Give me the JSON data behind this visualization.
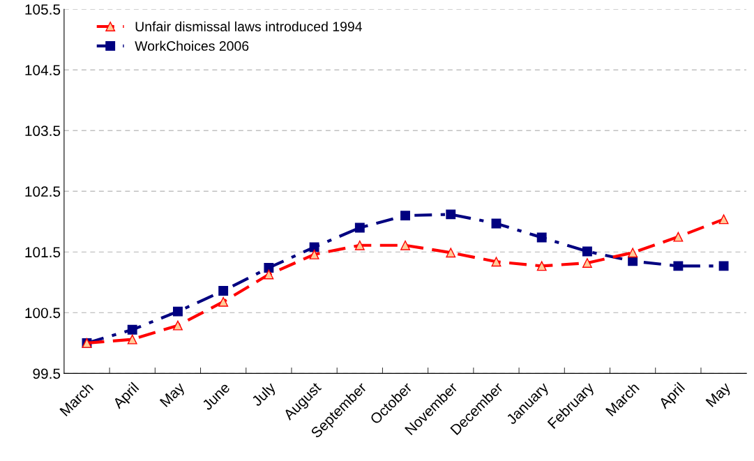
{
  "chart_data": {
    "type": "line",
    "categories": [
      "March",
      "April",
      "May",
      "June",
      "July",
      "August",
      "September",
      "October",
      "November",
      "December",
      "January",
      "February",
      "March",
      "April",
      "May"
    ],
    "series": [
      {
        "name": "Unfair dismissal laws introduced 1994",
        "color": "#ff0000",
        "marker": "triangle",
        "line_style": "dashed",
        "values": [
          100.0,
          100.06,
          100.29,
          100.68,
          101.13,
          101.46,
          101.61,
          101.61,
          101.49,
          101.34,
          101.27,
          101.32,
          101.49,
          101.75,
          102.04
        ]
      },
      {
        "name": "WorkChoices 2006",
        "color": "#000080",
        "marker": "square",
        "line_style": "dashdot",
        "values": [
          100.0,
          100.22,
          100.52,
          100.86,
          101.24,
          101.58,
          101.9,
          102.1,
          102.12,
          101.97,
          101.74,
          101.51,
          101.35,
          101.27,
          101.27
        ]
      }
    ],
    "ylim": [
      99.5,
      105.5
    ],
    "yticks": [
      99.5,
      100.5,
      101.5,
      102.5,
      103.5,
      104.5,
      105.5
    ],
    "grid": "y",
    "legend": "top left"
  }
}
